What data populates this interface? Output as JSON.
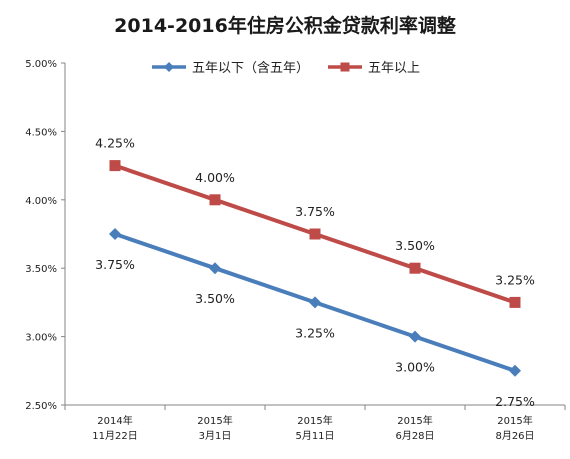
{
  "chart_data": {
    "type": "line",
    "title": "2014-2016年住房公积金贷款利率调整",
    "categories": [
      [
        "2014年",
        "11月22日"
      ],
      [
        "2015年",
        "3月1日"
      ],
      [
        "2015年",
        "5月11日"
      ],
      [
        "2015年",
        "6月28日"
      ],
      [
        "2015年",
        "8月26日"
      ]
    ],
    "series": [
      {
        "name": "五年以下（含五年）",
        "values": [
          3.75,
          3.5,
          3.25,
          3.0,
          2.75
        ],
        "labels": [
          "3.75%",
          "3.50%",
          "3.25%",
          "3.00%",
          "2.75%"
        ],
        "color": "#4A7EBB",
        "marker": "diamond",
        "label_position": "below"
      },
      {
        "name": "五年以上",
        "values": [
          4.25,
          4.0,
          3.75,
          3.5,
          3.25
        ],
        "labels": [
          "4.25%",
          "4.00%",
          "3.75%",
          "3.50%",
          "3.25%"
        ],
        "color": "#BE4B48",
        "marker": "square",
        "label_position": "above"
      }
    ],
    "ylim": [
      2.5,
      5.0
    ],
    "yticks": [
      "2.50%",
      "3.00%",
      "3.50%",
      "4.00%",
      "4.50%",
      "5.00%"
    ],
    "grid": false,
    "legend_position": "top"
  }
}
